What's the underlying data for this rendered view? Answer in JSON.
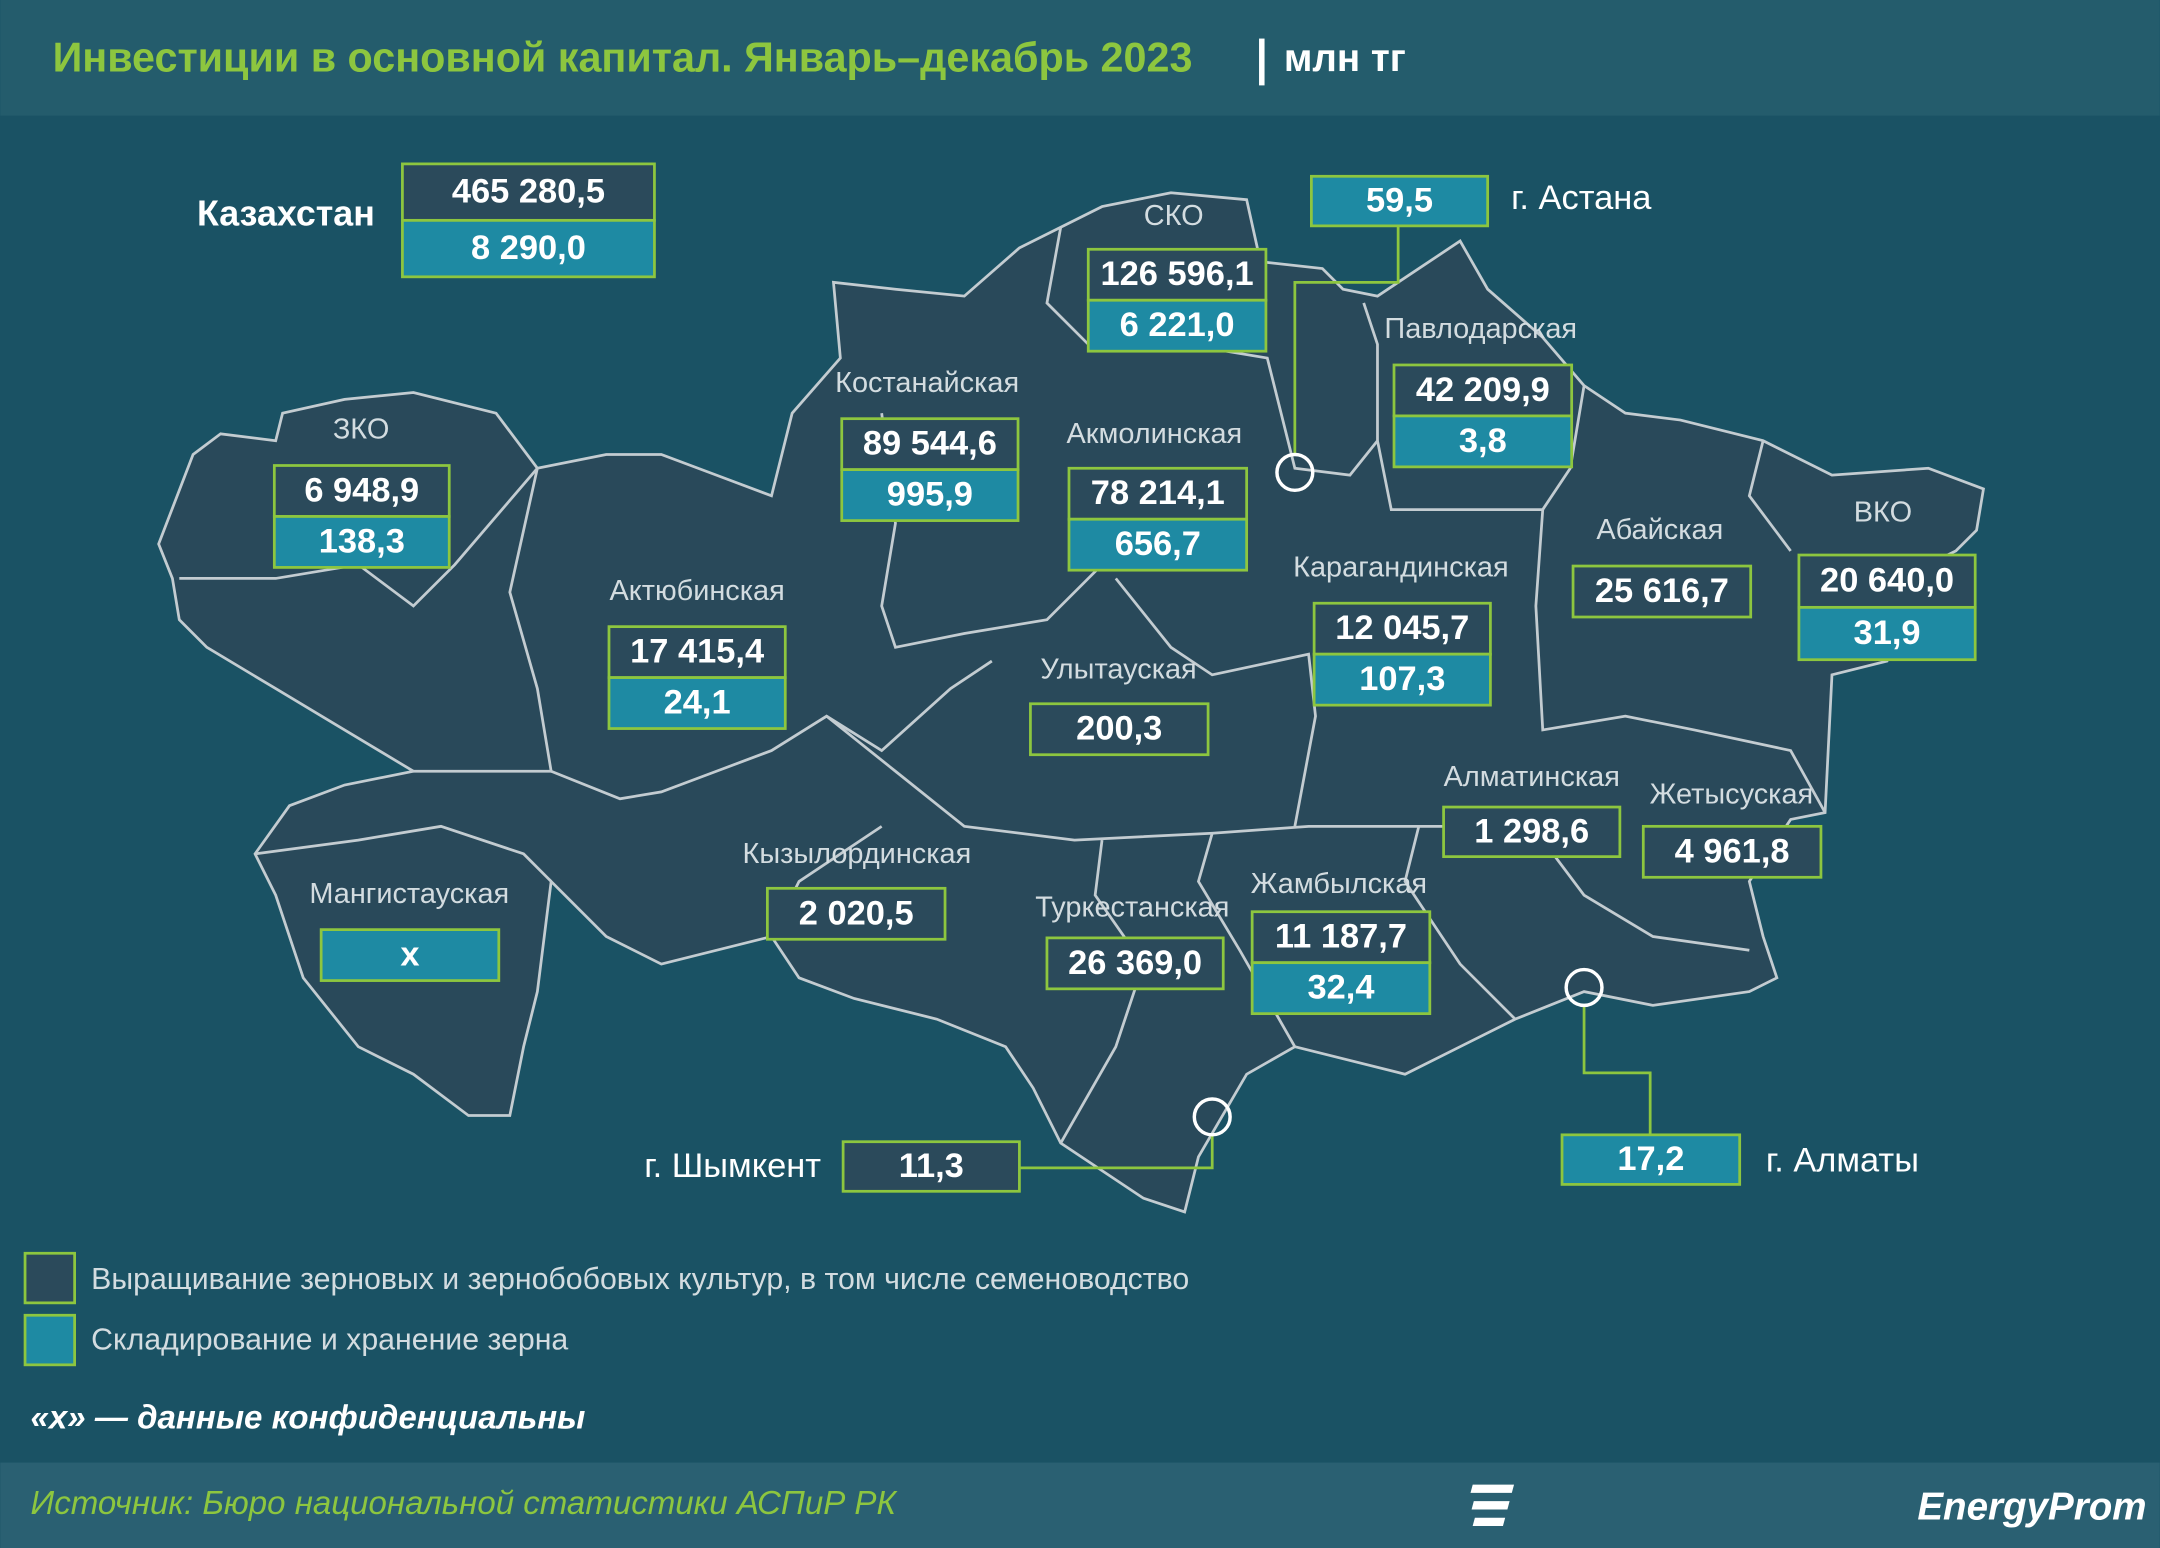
{
  "header": {
    "title": "Инвестиции в основной капитал. Январь–декабрь 2023",
    "unit": "млн тг"
  },
  "regions": [
    {
      "name": "Казахстан",
      "cultivation": "465 280,5",
      "storage": "8 290,0"
    },
    {
      "name": "СКО",
      "cultivation": "126 596,1",
      "storage": "6 221,0"
    },
    {
      "name": "г. Астана",
      "storage": "59,5"
    },
    {
      "name": "Павлодарская",
      "cultivation": "42 209,9",
      "storage": "3,8"
    },
    {
      "name": "Костанайская",
      "cultivation": "89 544,6",
      "storage": "995,9"
    },
    {
      "name": "Акмолинская",
      "cultivation": "78 214,1",
      "storage": "656,7"
    },
    {
      "name": "ЗКО",
      "cultivation": "6 948,9",
      "storage": "138,3"
    },
    {
      "name": "Актюбинская",
      "cultivation": "17 415,4",
      "storage": "24,1"
    },
    {
      "name": "Абайская",
      "cultivation": "25 616,7"
    },
    {
      "name": "ВКО",
      "cultivation": "20 640,0",
      "storage": "31,9"
    },
    {
      "name": "Карагандинская",
      "cultivation": "12 045,7",
      "storage": "107,3"
    },
    {
      "name": "Улытауская",
      "cultivation": "200,3"
    },
    {
      "name": "Алматинская",
      "cultivation": "1 298,6"
    },
    {
      "name": "Жетысуская",
      "cultivation": "4 961,8"
    },
    {
      "name": "Кызылординская",
      "cultivation": "2 020,5"
    },
    {
      "name": "Мангистауская",
      "storage": "x"
    },
    {
      "name": "Туркестанская",
      "cultivation": "26 369,0"
    },
    {
      "name": "Жамбылская",
      "cultivation": "11 187,7",
      "storage": "32,4"
    },
    {
      "name": "г. Шымкент",
      "cultivation": "11,3"
    },
    {
      "name": "г. Алматы",
      "storage": "17,2"
    }
  ],
  "legend": {
    "cultivation": "Выращивание зерновых и зернобобовых культур, в том числе семеноводство",
    "storage": "Складирование и хранение зерна"
  },
  "note": "«х» — данные конфиденциальны",
  "source": "Источник: Бюро национальной статистики АСПиР РК",
  "logo": "EnergyProm"
}
